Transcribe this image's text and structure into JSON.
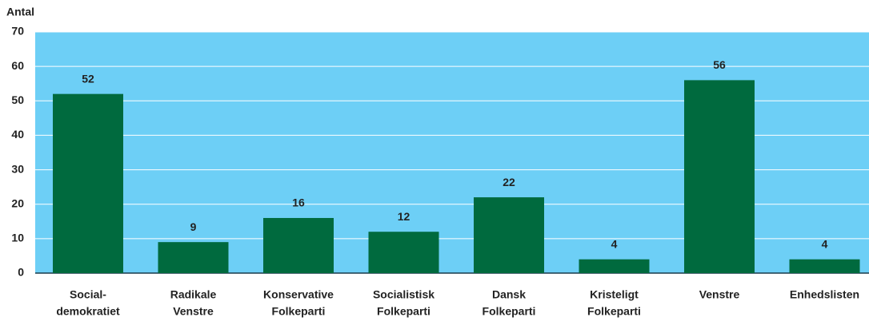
{
  "chart_data": {
    "type": "bar",
    "y_label": "Antal",
    "categories": [
      [
        "Social-",
        "demokratiet"
      ],
      [
        "Radikale",
        "Venstre"
      ],
      [
        "Konservative",
        "Folkeparti"
      ],
      [
        "Socialistisk",
        "Folkeparti"
      ],
      [
        "Dansk",
        "Folkeparti"
      ],
      [
        "Kristeligt",
        "Folkeparti"
      ],
      [
        "Venstre"
      ],
      [
        "Enhedslisten"
      ]
    ],
    "values": [
      52,
      9,
      16,
      12,
      22,
      4,
      56,
      4
    ],
    "color": "#006a3e",
    "background": "#6dcff6",
    "ylim": [
      0,
      70
    ],
    "yticks": [
      0,
      10,
      20,
      30,
      40,
      50,
      60,
      70
    ],
    "grid": true
  }
}
